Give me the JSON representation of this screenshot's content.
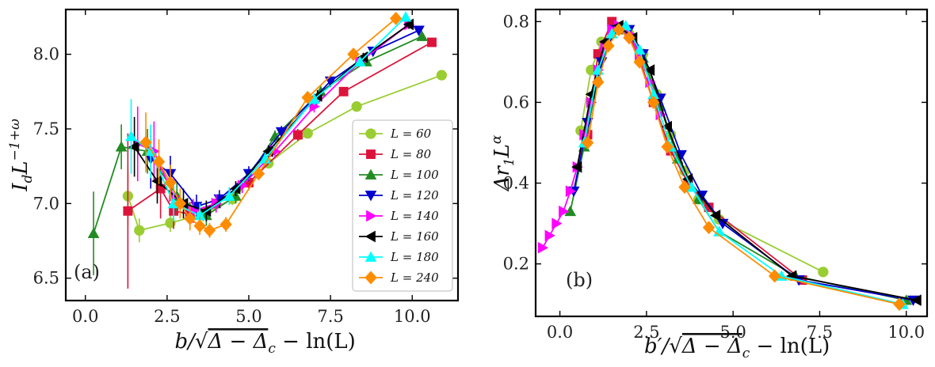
{
  "chart_data": [
    {
      "type": "line",
      "panel_label": "(a)",
      "xlabel": "b/√(Δ − Δ_c) − ln(L)",
      "xlabel_parts": {
        "pre": "b/",
        "rad": "Δ − Δ",
        "sub": "c",
        "post": " − ln(L)"
      },
      "ylabel_parts": {
        "base": "I",
        "sub": "d",
        "mid": "L",
        "sup": "−1+ω"
      },
      "xlim": [
        -0.6,
        11.4
      ],
      "ylim": [
        6.35,
        8.3
      ],
      "xticks": [
        0.0,
        2.5,
        5.0,
        7.5,
        10.0
      ],
      "xtick_labels": [
        "0.0",
        "2.5",
        "5.0",
        "7.5",
        "10.0"
      ],
      "yticks": [
        6.5,
        7.0,
        7.5,
        8.0
      ],
      "ytick_labels": [
        "6.5",
        "7.0",
        "7.5",
        "8.0"
      ],
      "legend": {
        "position": "lower-right",
        "entries": [
          "L = 60",
          "L = 80",
          "L = 100",
          "L = 120",
          "L = 140",
          "L = 160",
          "L = 180",
          "L = 240"
        ]
      },
      "series": [
        {
          "name": "L = 60",
          "color": "#9acd32",
          "marker": "circle",
          "x": [
            1.3,
            1.65,
            2.6,
            3.6,
            4.5,
            5.6,
            6.8,
            8.3,
            10.9
          ],
          "y": [
            7.05,
            6.82,
            6.87,
            6.93,
            7.03,
            7.27,
            7.47,
            7.65,
            7.86
          ],
          "err": [
            0.2,
            0.08,
            0.06,
            0.05,
            0.04,
            0.03,
            0.03,
            0.03,
            0.03
          ]
        },
        {
          "name": "L = 80",
          "color": "#dc143c",
          "marker": "square",
          "x": [
            1.3,
            2.3,
            2.7,
            3.2,
            4.0,
            5.0,
            6.5,
            7.9,
            10.6
          ],
          "y": [
            6.95,
            7.1,
            6.95,
            6.93,
            7.0,
            7.14,
            7.46,
            7.75,
            8.08
          ],
          "err": [
            0.52,
            0.2,
            0.12,
            0.08,
            0.06,
            0.05,
            0.04,
            0.03,
            0.03
          ]
        },
        {
          "name": "L = 100",
          "color": "#228b22",
          "marker": "triangle-up",
          "x": [
            0.25,
            1.1,
            1.9,
            2.8,
            3.7,
            4.6,
            5.8,
            7.2,
            8.6,
            10.3
          ],
          "y": [
            6.8,
            7.38,
            7.35,
            7.05,
            6.92,
            7.05,
            7.45,
            7.75,
            7.95,
            8.12
          ],
          "err": [
            0.28,
            0.15,
            0.15,
            0.1,
            0.07,
            0.05,
            0.04,
            0.04,
            0.03,
            0.03
          ]
        },
        {
          "name": "L = 120",
          "color": "#0000cd",
          "marker": "triangle-down",
          "x": [
            2.0,
            2.6,
            3.4,
            4.1,
            5.0,
            6.0,
            7.5,
            8.8,
            10.2
          ],
          "y": [
            7.3,
            7.2,
            6.98,
            7.03,
            7.2,
            7.48,
            7.82,
            8.02,
            8.16
          ],
          "err": [
            0.2,
            0.12,
            0.08,
            0.06,
            0.05,
            0.04,
            0.04,
            0.03,
            0.03
          ]
        },
        {
          "name": "L = 140",
          "color": "#ff00ff",
          "marker": "triangle-right",
          "x": [
            1.6,
            2.1,
            2.7,
            3.3,
            4.0,
            4.8,
            5.8,
            7.0,
            8.4,
            9.9
          ],
          "y": [
            7.4,
            7.35,
            7.05,
            6.95,
            7.0,
            7.12,
            7.35,
            7.65,
            7.95,
            8.2
          ],
          "err": [
            0.25,
            0.2,
            0.12,
            0.08,
            0.06,
            0.05,
            0.04,
            0.04,
            0.03,
            0.03
          ]
        },
        {
          "name": "L = 160",
          "color": "#000000",
          "marker": "triangle-left",
          "x": [
            1.5,
            2.2,
            3.0,
            3.7,
            4.6,
            5.6,
            7.1,
            8.5,
            9.9
          ],
          "y": [
            7.38,
            7.15,
            7.0,
            6.95,
            7.1,
            7.35,
            7.72,
            7.98,
            8.2
          ],
          "err": [
            0.2,
            0.15,
            0.1,
            0.07,
            0.05,
            0.04,
            0.04,
            0.03,
            0.03
          ]
        },
        {
          "name": "L = 180",
          "color": "#00ffff",
          "marker": "triangle-up",
          "x": [
            1.4,
            2.0,
            2.7,
            3.5,
            4.4,
            5.5,
            7.0,
            8.4,
            9.8
          ],
          "y": [
            7.45,
            7.35,
            7.0,
            6.92,
            7.05,
            7.3,
            7.7,
            7.95,
            8.25
          ],
          "err": [
            0.25,
            0.18,
            0.12,
            0.08,
            0.06,
            0.04,
            0.04,
            0.03,
            0.03
          ]
        },
        {
          "name": "L = 240",
          "color": "#ff8c00",
          "marker": "diamond",
          "x": [
            1.85,
            2.25,
            2.6,
            2.9,
            3.2,
            3.5,
            3.8,
            4.3,
            5.3,
            6.8,
            8.2,
            9.5
          ],
          "y": [
            7.41,
            7.28,
            7.14,
            7.0,
            6.9,
            6.85,
            6.82,
            6.86,
            7.2,
            7.71,
            8.0,
            8.24
          ],
          "err": [
            0.2,
            0.15,
            0.12,
            0.1,
            0.08,
            0.06,
            0.05,
            0.05,
            0.04,
            0.04,
            0.03,
            0.03
          ]
        }
      ]
    },
    {
      "type": "line",
      "panel_label": "(b)",
      "xlabel": "b′/√(Δ − Δ_c) − ln(L)",
      "xlabel_parts": {
        "pre": "b′/",
        "rad": "Δ − Δ",
        "sub": "c",
        "post": " − ln(L)"
      },
      "ylabel_parts": {
        "base": "Δr",
        "sub": "1",
        "mid": "L",
        "sup": "α"
      },
      "xlim": [
        -0.7,
        10.6
      ],
      "ylim": [
        0.07,
        0.83
      ],
      "xticks": [
        0.0,
        2.5,
        5.0,
        7.5,
        10.0
      ],
      "xtick_labels": [
        "0.0",
        "2.5",
        "5.0",
        "7.5",
        "10.0"
      ],
      "yticks": [
        0.2,
        0.4,
        0.6,
        0.8
      ],
      "ytick_labels": [
        "0.2",
        "0.4",
        "0.6",
        "0.8"
      ],
      "series": [
        {
          "name": "L = 60",
          "color": "#9acd32",
          "marker": "circle",
          "x": [
            0.6,
            0.9,
            1.2,
            1.6,
            2.0,
            2.4,
            2.8,
            3.2,
            3.6,
            4.0,
            4.6,
            7.6
          ],
          "y": [
            0.53,
            0.68,
            0.75,
            0.78,
            0.77,
            0.72,
            0.62,
            0.52,
            0.43,
            0.36,
            0.31,
            0.18
          ]
        },
        {
          "name": "L = 80",
          "color": "#dc143c",
          "marker": "square",
          "x": [
            0.8,
            1.1,
            1.5,
            1.9,
            2.3,
            2.7,
            3.2,
            3.7,
            4.3,
            7.0
          ],
          "y": [
            0.52,
            0.72,
            0.8,
            0.78,
            0.71,
            0.6,
            0.48,
            0.4,
            0.34,
            0.16
          ]
        },
        {
          "name": "L = 100",
          "color": "#228b22",
          "marker": "triangle-up",
          "x": [
            0.3,
            0.7,
            1.1,
            1.5,
            1.9,
            2.4,
            2.9,
            3.4,
            4.0,
            4.6,
            6.8,
            10.0
          ],
          "y": [
            0.33,
            0.49,
            0.66,
            0.77,
            0.78,
            0.71,
            0.59,
            0.46,
            0.36,
            0.28,
            0.17,
            0.11
          ]
        },
        {
          "name": "L = 120",
          "color": "#0000cd",
          "marker": "triangle-down",
          "x": [
            0.4,
            0.8,
            1.2,
            1.6,
            2.0,
            2.4,
            2.9,
            3.5,
            4.1,
            4.7,
            6.9,
            10.2
          ],
          "y": [
            0.38,
            0.55,
            0.7,
            0.78,
            0.78,
            0.72,
            0.61,
            0.47,
            0.37,
            0.3,
            0.16,
            0.11
          ]
        },
        {
          "name": "L = 140",
          "color": "#ff00ff",
          "marker": "triangle-right",
          "x": [
            -0.5,
            -0.3,
            -0.1,
            0.1,
            0.3,
            0.5,
            0.7,
            0.9,
            1.1,
            1.3,
            1.5,
            1.7,
            2.0,
            2.3,
            2.6,
            2.9
          ],
          "y": [
            0.24,
            0.27,
            0.3,
            0.33,
            0.38,
            0.44,
            0.52,
            0.6,
            0.68,
            0.74,
            0.78,
            0.79,
            0.77,
            0.72,
            0.65,
            0.57
          ]
        },
        {
          "name": "L = 160",
          "color": "#000000",
          "marker": "triangle-left",
          "x": [
            0.5,
            0.9,
            1.3,
            1.7,
            2.1,
            2.6,
            3.1,
            3.7,
            4.5,
            6.7,
            10.3
          ],
          "y": [
            0.44,
            0.62,
            0.75,
            0.79,
            0.76,
            0.68,
            0.54,
            0.41,
            0.32,
            0.17,
            0.11
          ]
        },
        {
          "name": "L = 180",
          "color": "#00ffff",
          "marker": "triangle-up",
          "x": [
            0.7,
            1.1,
            1.5,
            1.9,
            2.3,
            2.7,
            3.2,
            3.8,
            4.6,
            6.4,
            9.9
          ],
          "y": [
            0.5,
            0.68,
            0.77,
            0.79,
            0.73,
            0.62,
            0.49,
            0.39,
            0.28,
            0.17,
            0.1
          ]
        },
        {
          "name": "L = 240",
          "color": "#ff8c00",
          "marker": "diamond",
          "x": [
            0.8,
            1.1,
            1.4,
            1.7,
            2.0,
            2.3,
            2.7,
            3.1,
            3.6,
            4.3,
            6.2,
            9.8
          ],
          "y": [
            0.5,
            0.65,
            0.74,
            0.78,
            0.76,
            0.7,
            0.6,
            0.49,
            0.39,
            0.29,
            0.17,
            0.1
          ]
        }
      ]
    }
  ]
}
